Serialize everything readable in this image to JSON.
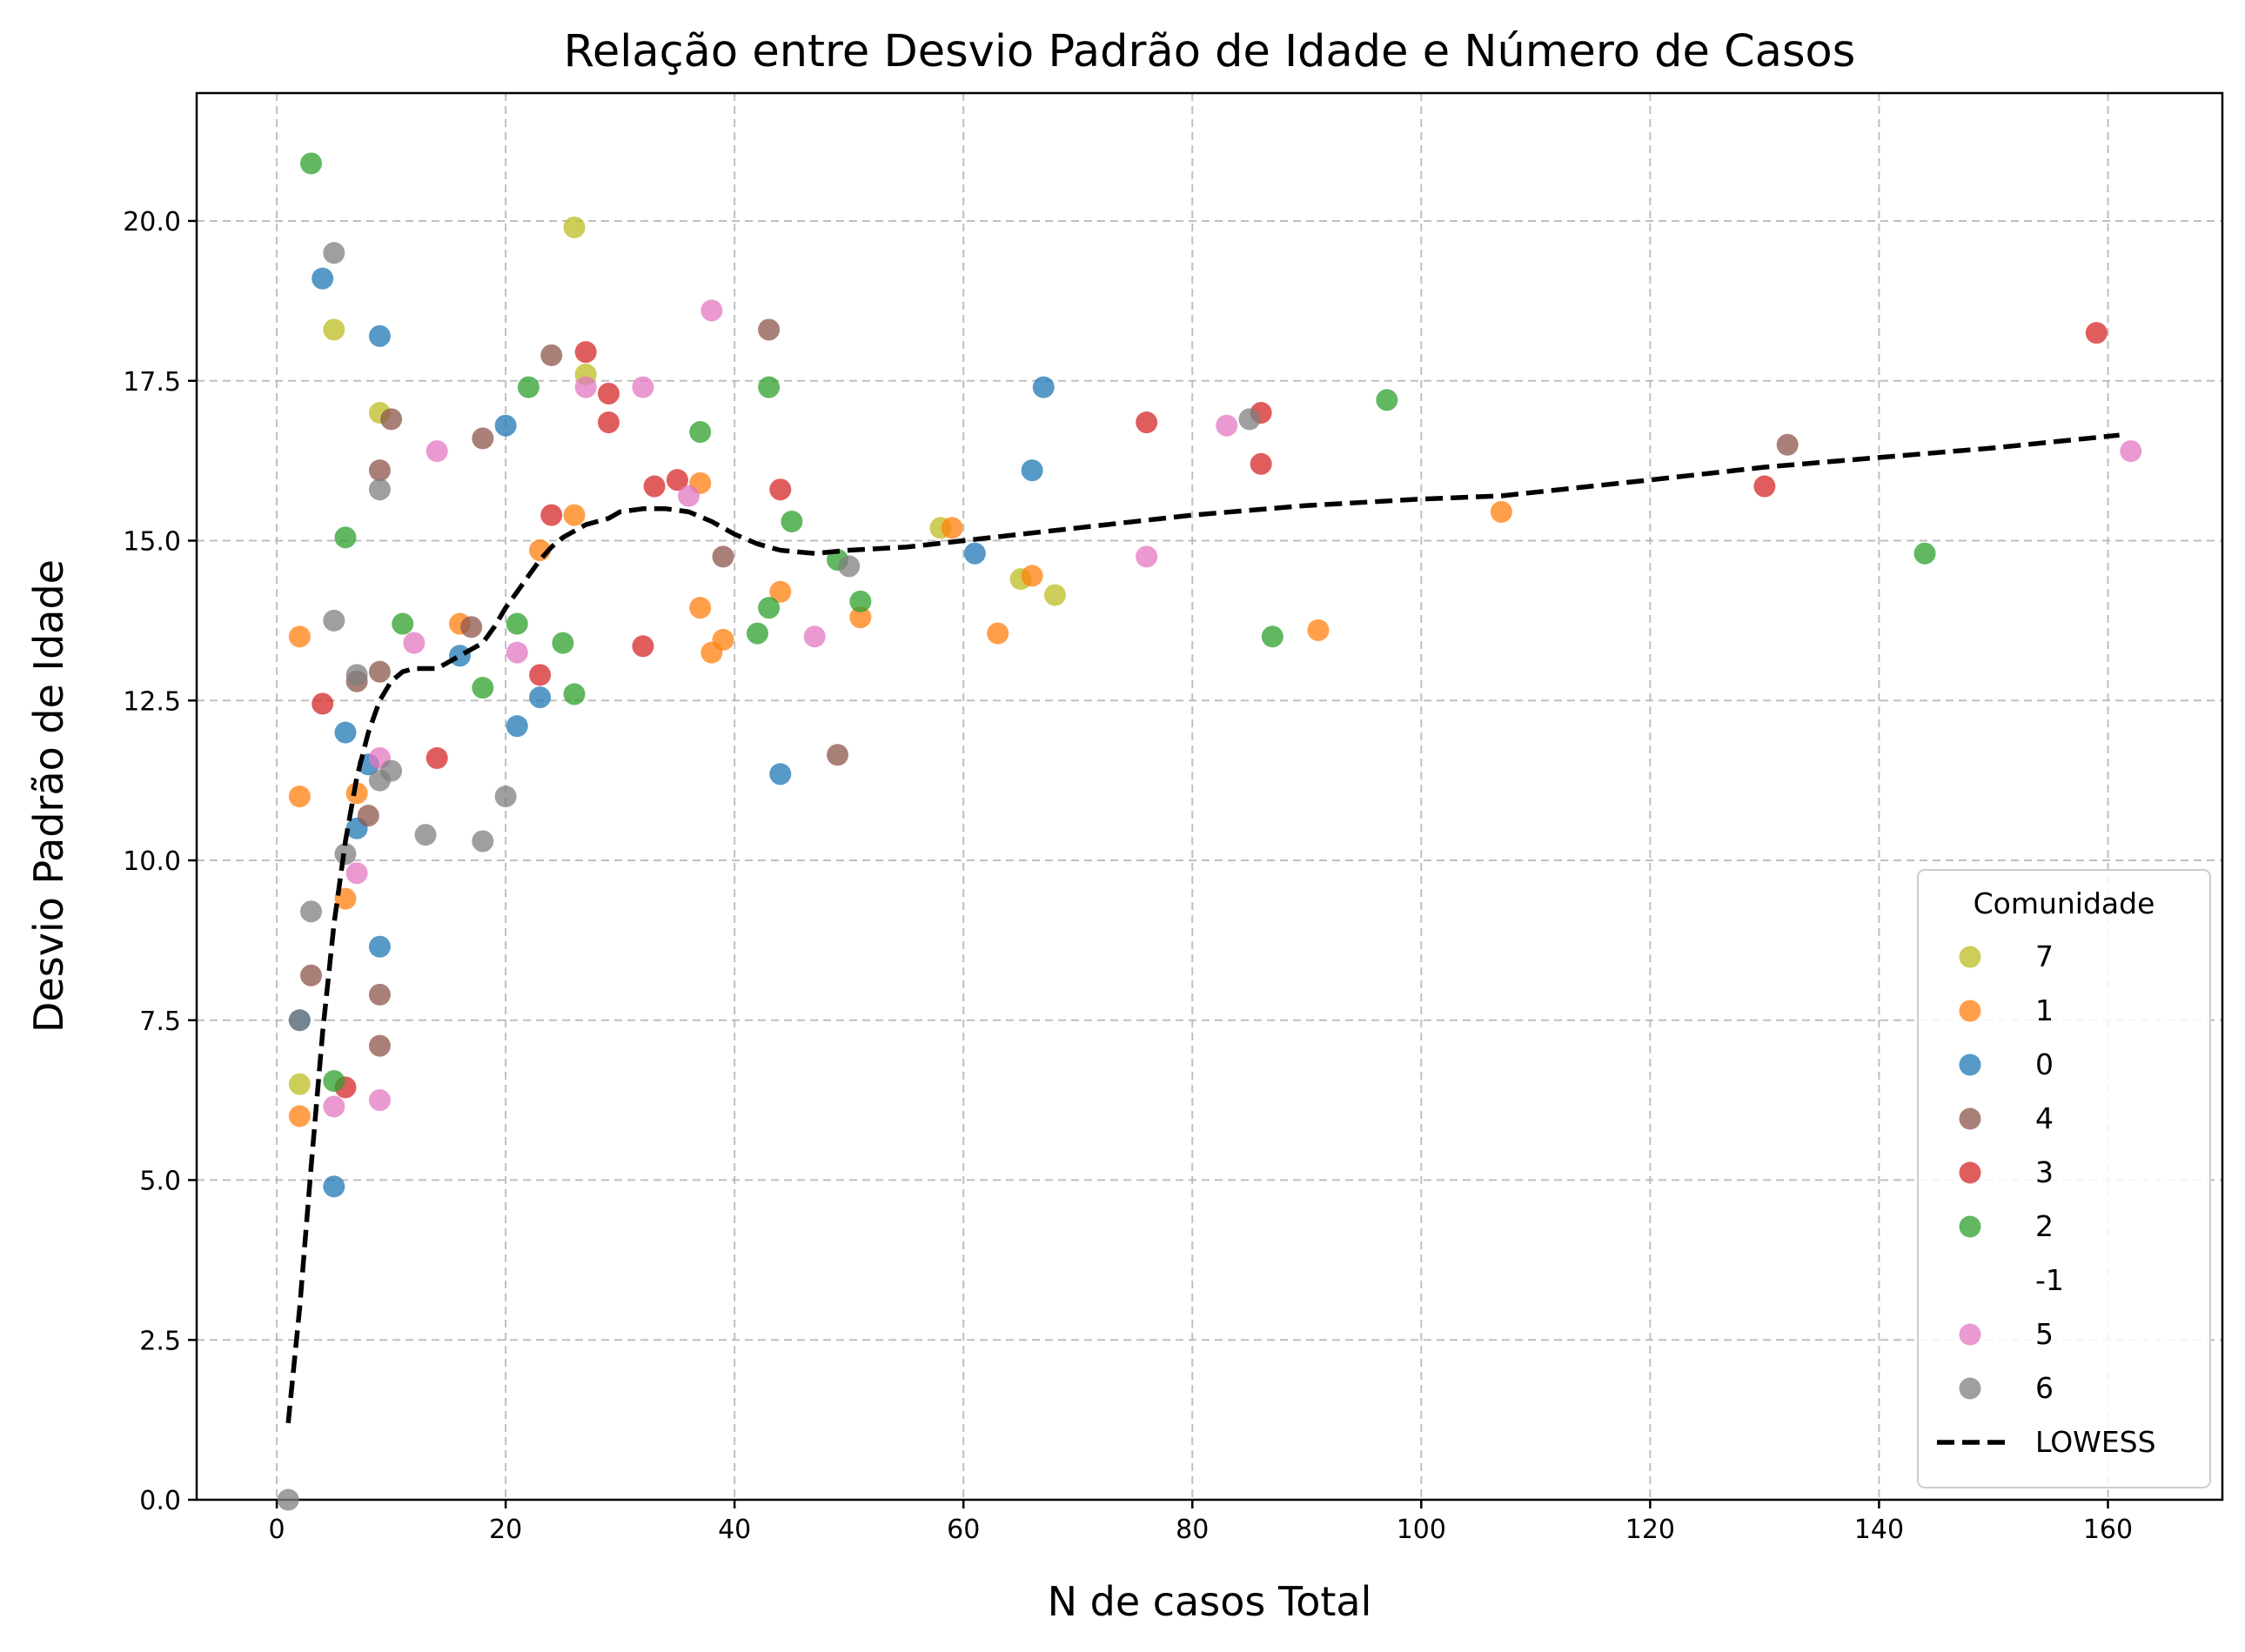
{
  "chart_data": {
    "type": "scatter",
    "title": "Relação entre Desvio Padrão de Idade e Número de Casos",
    "xlabel": "N de casos Total",
    "ylabel": "Desvio Padrão de Idade",
    "xlim": [
      -7,
      170
    ],
    "ylim": [
      0,
      22
    ],
    "x_ticks": [
      0,
      20,
      40,
      60,
      80,
      100,
      120,
      140,
      160
    ],
    "x_tick_labels": [
      "0",
      "20",
      "40",
      "60",
      "80",
      "100",
      "120",
      "140",
      "160"
    ],
    "y_ticks": [
      0,
      2.5,
      5,
      7.5,
      10,
      12.5,
      15,
      17.5,
      20
    ],
    "y_tick_labels": [
      "0.0",
      "2.5",
      "5.0",
      "7.5",
      "10.0",
      "12.5",
      "15.0",
      "17.5",
      "20.0"
    ],
    "grid": true,
    "legend": {
      "title": "Comunidade",
      "position": "lower-right"
    },
    "series": [
      {
        "name": "7",
        "color": "#bcbd22",
        "points": [
          [
            26,
            19.9
          ],
          [
            5,
            18.3
          ],
          [
            9,
            17.0
          ],
          [
            27,
            17.6
          ],
          [
            58,
            15.2
          ],
          [
            65,
            14.4
          ],
          [
            68,
            14.15
          ],
          [
            2,
            6.5
          ]
        ]
      },
      {
        "name": "1",
        "color": "#ff7f0e",
        "points": [
          [
            2,
            13.5
          ],
          [
            2,
            11.0
          ],
          [
            2,
            6.0
          ],
          [
            6,
            9.4
          ],
          [
            7,
            11.05
          ],
          [
            16,
            13.7
          ],
          [
            23,
            14.85
          ],
          [
            26,
            15.4
          ],
          [
            37,
            13.95
          ],
          [
            37,
            15.9
          ],
          [
            38,
            13.25
          ],
          [
            39,
            13.45
          ],
          [
            44,
            14.2
          ],
          [
            51,
            13.8
          ],
          [
            59,
            15.2
          ],
          [
            63,
            13.55
          ],
          [
            66,
            14.45
          ],
          [
            91,
            13.6
          ],
          [
            107,
            15.45
          ]
        ]
      },
      {
        "name": "0",
        "color": "#1f77b4",
        "points": [
          [
            4,
            19.1
          ],
          [
            9,
            18.2
          ],
          [
            6,
            12.0
          ],
          [
            7,
            10.5
          ],
          [
            8,
            11.5
          ],
          [
            9,
            8.65
          ],
          [
            5,
            4.9
          ],
          [
            2,
            7.5
          ],
          [
            16,
            13.2
          ],
          [
            20,
            16.8
          ],
          [
            21,
            12.1
          ],
          [
            23,
            12.55
          ],
          [
            44,
            11.35
          ],
          [
            61,
            14.8
          ],
          [
            66,
            16.1
          ],
          [
            67,
            17.4
          ]
        ]
      },
      {
        "name": "4",
        "color": "#8c564b",
        "points": [
          [
            3,
            8.2
          ],
          [
            7,
            12.8
          ],
          [
            8,
            10.7
          ],
          [
            9,
            12.95
          ],
          [
            9,
            16.1
          ],
          [
            10,
            16.9
          ],
          [
            9,
            7.9
          ],
          [
            9,
            7.1
          ],
          [
            17,
            13.65
          ],
          [
            18,
            16.6
          ],
          [
            24,
            17.9
          ],
          [
            39,
            14.75
          ],
          [
            43,
            18.3
          ],
          [
            49,
            11.65
          ],
          [
            132,
            16.5
          ]
        ]
      },
      {
        "name": "3",
        "color": "#d62728",
        "points": [
          [
            4,
            12.45
          ],
          [
            6,
            6.45
          ],
          [
            14,
            11.6
          ],
          [
            23,
            12.9
          ],
          [
            24,
            15.4
          ],
          [
            27,
            17.95
          ],
          [
            29,
            17.3
          ],
          [
            29,
            16.85
          ],
          [
            32,
            13.35
          ],
          [
            33,
            15.85
          ],
          [
            35,
            15.95
          ],
          [
            44,
            15.8
          ],
          [
            76,
            16.85
          ],
          [
            86,
            17.0
          ],
          [
            86,
            16.2
          ],
          [
            130,
            15.85
          ],
          [
            159,
            18.25
          ]
        ]
      },
      {
        "name": "2",
        "color": "#2ca02c",
        "points": [
          [
            3,
            20.9
          ],
          [
            6,
            15.05
          ],
          [
            5,
            6.55
          ],
          [
            11,
            13.7
          ],
          [
            18,
            12.7
          ],
          [
            21,
            13.7
          ],
          [
            22,
            17.4
          ],
          [
            25,
            13.4
          ],
          [
            26,
            12.6
          ],
          [
            37,
            16.7
          ],
          [
            42,
            13.55
          ],
          [
            43,
            13.95
          ],
          [
            43,
            17.4
          ],
          [
            45,
            15.3
          ],
          [
            49,
            14.7
          ],
          [
            51,
            14.05
          ],
          [
            87,
            13.5
          ],
          [
            97,
            17.2
          ],
          [
            144,
            14.8
          ]
        ]
      },
      {
        "name": "-1",
        "color": "#ffffff",
        "points": []
      },
      {
        "name": "5",
        "color": "#e377c2",
        "points": [
          [
            5,
            6.15
          ],
          [
            7,
            9.8
          ],
          [
            9,
            11.6
          ],
          [
            9,
            6.25
          ],
          [
            12,
            13.4
          ],
          [
            14,
            16.4
          ],
          [
            21,
            13.25
          ],
          [
            27,
            17.4
          ],
          [
            32,
            17.4
          ],
          [
            36,
            15.7
          ],
          [
            38,
            18.6
          ],
          [
            47,
            13.5
          ],
          [
            76,
            14.75
          ],
          [
            83,
            16.8
          ],
          [
            162,
            16.4
          ]
        ]
      },
      {
        "name": "6",
        "color": "#7f7f7f",
        "points": [
          [
            1,
            0.0
          ],
          [
            2,
            7.5
          ],
          [
            3,
            9.2
          ],
          [
            5,
            13.75
          ],
          [
            5,
            19.5
          ],
          [
            6,
            10.1
          ],
          [
            7,
            12.9
          ],
          [
            9,
            11.25
          ],
          [
            9,
            15.8
          ],
          [
            10,
            11.4
          ],
          [
            13,
            10.4
          ],
          [
            18,
            10.3
          ],
          [
            20,
            11.0
          ],
          [
            50,
            14.6
          ],
          [
            85,
            16.9
          ]
        ]
      }
    ],
    "lowess": {
      "name": "LOWESS",
      "color": "#000000",
      "style": "dashed",
      "x": [
        1,
        2,
        3,
        4,
        5,
        6,
        7,
        8,
        9,
        10,
        11,
        12,
        13,
        14,
        15,
        16,
        17,
        18,
        19,
        20,
        21,
        22,
        23,
        24,
        25,
        26,
        27,
        28,
        29,
        30,
        32,
        34,
        36,
        38,
        40,
        42,
        44,
        47,
        50,
        55,
        60,
        65,
        70,
        80,
        90,
        100,
        107,
        120,
        130,
        140,
        150,
        161
      ],
      "y": [
        1.2,
        3.0,
        5.2,
        7.3,
        9.0,
        10.3,
        11.3,
        12.0,
        12.5,
        12.8,
        12.95,
        13.0,
        13.0,
        13.0,
        13.1,
        13.2,
        13.3,
        13.4,
        13.65,
        13.95,
        14.2,
        14.45,
        14.7,
        14.9,
        15.05,
        15.15,
        15.25,
        15.3,
        15.35,
        15.45,
        15.5,
        15.5,
        15.45,
        15.3,
        15.1,
        14.95,
        14.85,
        14.8,
        14.85,
        14.9,
        15.0,
        15.1,
        15.2,
        15.4,
        15.55,
        15.65,
        15.7,
        15.95,
        16.15,
        16.3,
        16.45,
        16.65
      ]
    }
  }
}
